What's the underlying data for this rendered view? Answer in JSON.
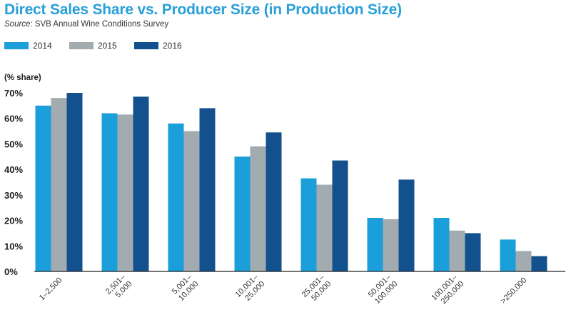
{
  "header": {
    "title": "Direct Sales Share vs. Producer Size (in Production Size)",
    "source_label": "Source:",
    "source_text": "SVB Annual Wine Conditions Survey"
  },
  "chart_data": {
    "type": "bar",
    "title": "Direct Sales Share vs. Producer Size (in Production Size)",
    "ylabel": "(% share)",
    "xlabel": "",
    "ylim": [
      0,
      70
    ],
    "yticks": [
      0,
      10,
      20,
      30,
      40,
      50,
      60,
      70
    ],
    "ytick_labels": [
      "0%",
      "10%",
      "20%",
      "30%",
      "40%",
      "50%",
      "60%",
      "70%"
    ],
    "grid": false,
    "legend": "top-left",
    "categories": [
      [
        "1–2,500"
      ],
      [
        "2,501–",
        "5,000"
      ],
      [
        "5,001–",
        "10,000"
      ],
      [
        "10,001–",
        "25,000"
      ],
      [
        "25,001–",
        "50,000"
      ],
      [
        "50,001–",
        "100,000"
      ],
      [
        "100,001–",
        "250,000"
      ],
      [
        ">250,000"
      ]
    ],
    "series": [
      {
        "name": "2014",
        "color": "#1a9fdb",
        "values": [
          65,
          62,
          58,
          45,
          36.5,
          21,
          21,
          12.5
        ]
      },
      {
        "name": "2015",
        "color": "#a2abb0",
        "values": [
          68,
          61.5,
          55,
          49,
          34,
          20.5,
          16,
          8
        ]
      },
      {
        "name": "2016",
        "color": "#12518d",
        "values": [
          70,
          68.5,
          64,
          54.5,
          43.5,
          36,
          15,
          6
        ]
      }
    ]
  }
}
